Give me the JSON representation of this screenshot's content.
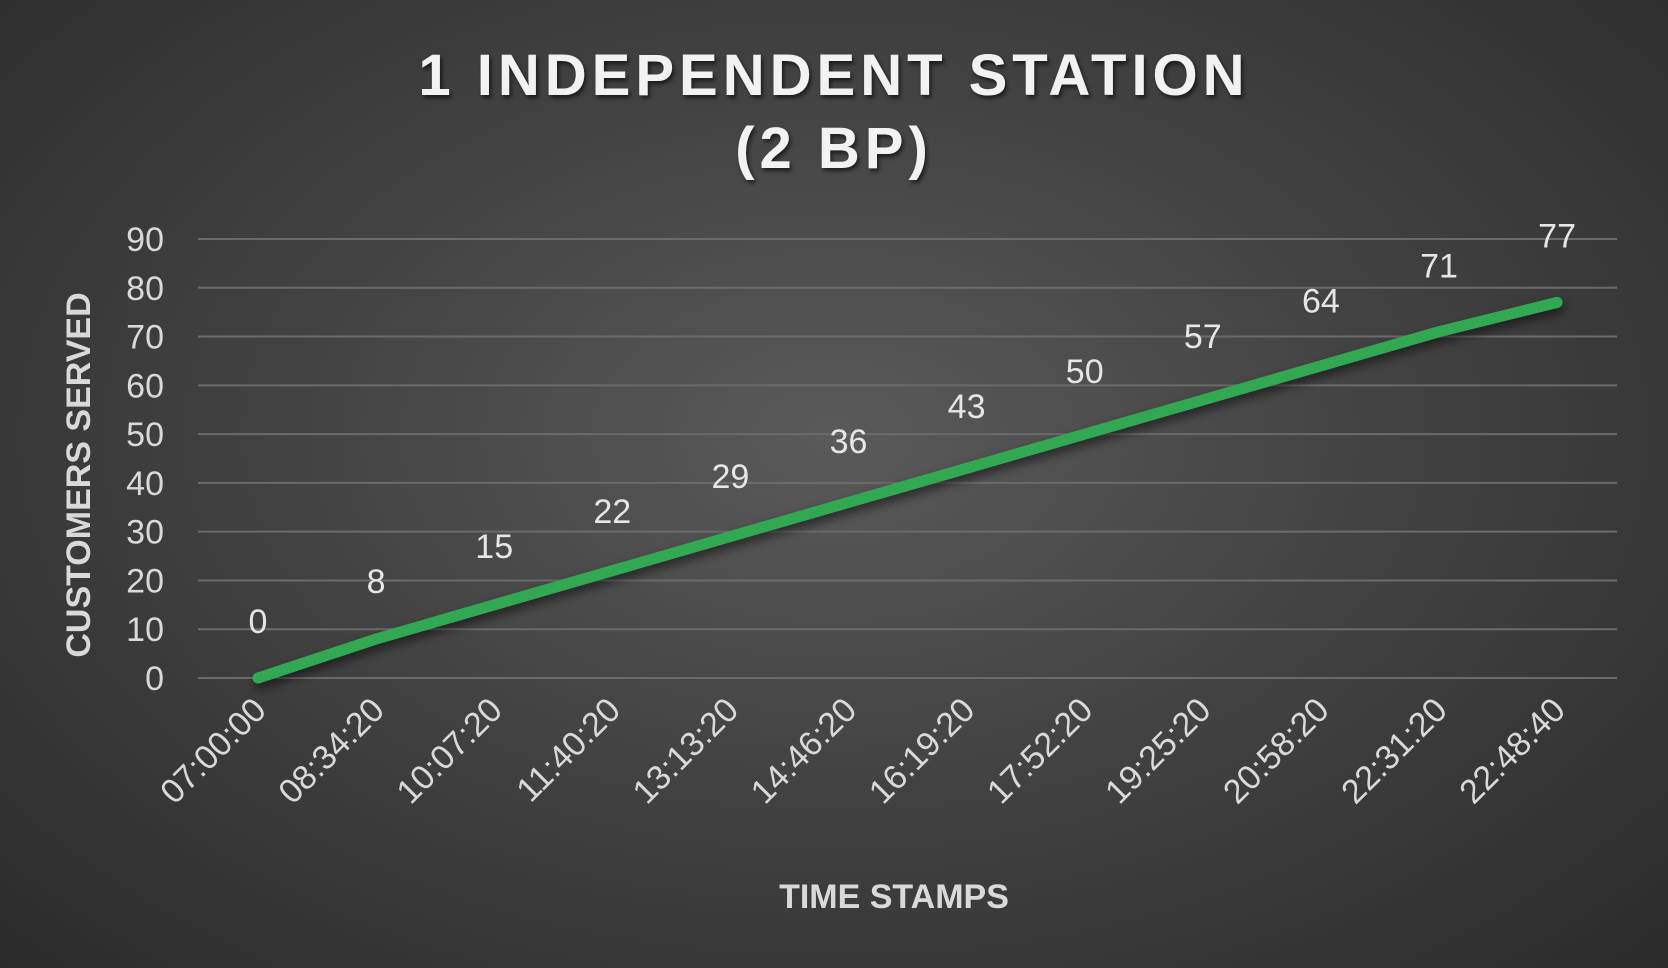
{
  "chart_data": {
    "type": "line",
    "title_lines": [
      "1 INDEPENDENT STATION",
      "(2 BP)"
    ],
    "xlabel": "TIME STAMPS",
    "ylabel": "CUSTOMERS SERVED",
    "ylim": [
      0,
      90
    ],
    "yticks": [
      "0",
      "10",
      "20",
      "30",
      "40",
      "50",
      "60",
      "70",
      "80",
      "90"
    ],
    "grid": true,
    "categories": [
      "07:00:00",
      "08:34:20",
      "10:07:20",
      "11:40:20",
      "13:13:20",
      "14:46:20",
      "16:19:20",
      "17:52:20",
      "19:25:20",
      "20:58:20",
      "22:31:20",
      "22:48:40"
    ],
    "series": [
      {
        "values": [
          0,
          8,
          15,
          22,
          29,
          36,
          43,
          50,
          57,
          64,
          71,
          77
        ],
        "color": "#33a852"
      }
    ],
    "data_labels": true
  }
}
